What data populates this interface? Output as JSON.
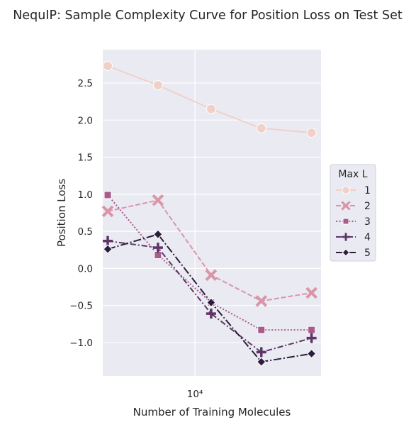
{
  "chart_data": {
    "type": "line",
    "title": "NequIP: Sample Complexity Curve for Position Loss on Test Set",
    "xlabel": "Number of Training Molecules",
    "ylabel": "Position Loss",
    "x_scale": "log",
    "x": [
      3000,
      6000,
      12500,
      25000,
      50000
    ],
    "xlim": [
      2800,
      57000
    ],
    "x_ticks": [
      {
        "value": 10000,
        "label": "10⁴"
      }
    ],
    "ylim": [
      -1.45,
      2.95
    ],
    "y_ticks": [
      {
        "value": 2.5,
        "label": "2.5"
      },
      {
        "value": 2.0,
        "label": "2.0"
      },
      {
        "value": 1.5,
        "label": "1.5"
      },
      {
        "value": 1.0,
        "label": "1.0"
      },
      {
        "value": 0.5,
        "label": "0.5"
      },
      {
        "value": 0.0,
        "label": "0.0"
      },
      {
        "value": -0.5,
        "label": "−0.5"
      },
      {
        "value": -1.0,
        "label": "−1.0"
      }
    ],
    "grid": true,
    "legend": {
      "title": "Max L",
      "placement": "right-center"
    },
    "series": [
      {
        "name": "1",
        "marker": "circle",
        "dash": "solid",
        "color": "#f0d1c8",
        "values": [
          2.73,
          2.47,
          2.15,
          1.89,
          1.83
        ]
      },
      {
        "name": "2",
        "marker": "x",
        "dash": "dashed",
        "color": "#d996a8",
        "values": [
          0.77,
          0.92,
          -0.09,
          -0.44,
          -0.33
        ]
      },
      {
        "name": "3",
        "marker": "square",
        "dash": "dotted",
        "color": "#a65c8c",
        "values": [
          0.99,
          0.18,
          -0.46,
          -0.83,
          -0.83
        ]
      },
      {
        "name": "4",
        "marker": "plus",
        "dash": "dashdot",
        "color": "#5e3566",
        "values": [
          0.37,
          0.28,
          -0.61,
          -1.13,
          -0.94
        ]
      },
      {
        "name": "5",
        "marker": "diamond",
        "dash": "longdashdot",
        "color": "#2d1e3e",
        "values": [
          0.26,
          0.46,
          -0.46,
          -1.26,
          -1.15
        ]
      }
    ]
  }
}
